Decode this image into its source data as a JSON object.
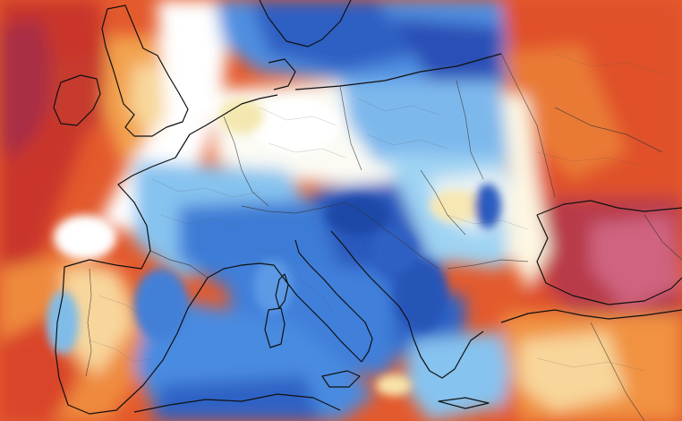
{
  "map": {
    "region": "Europe",
    "kind": "temperature anomaly field",
    "palette": {
      "very_cold": "#2a5fc4",
      "cold": "#4f8fe0",
      "cool": "#86c3ef",
      "cool_light": "#b8e2f5",
      "neutral": "#ffffff",
      "warm_light": "#f7e3a8",
      "warm": "#f2a24f",
      "warmer": "#e8622f",
      "hot": "#d23c2a",
      "very_hot": "#b02f46",
      "extreme": "#c95a78",
      "coastline": "#111111",
      "borders": "#333333"
    },
    "has_text_labels": false
  }
}
